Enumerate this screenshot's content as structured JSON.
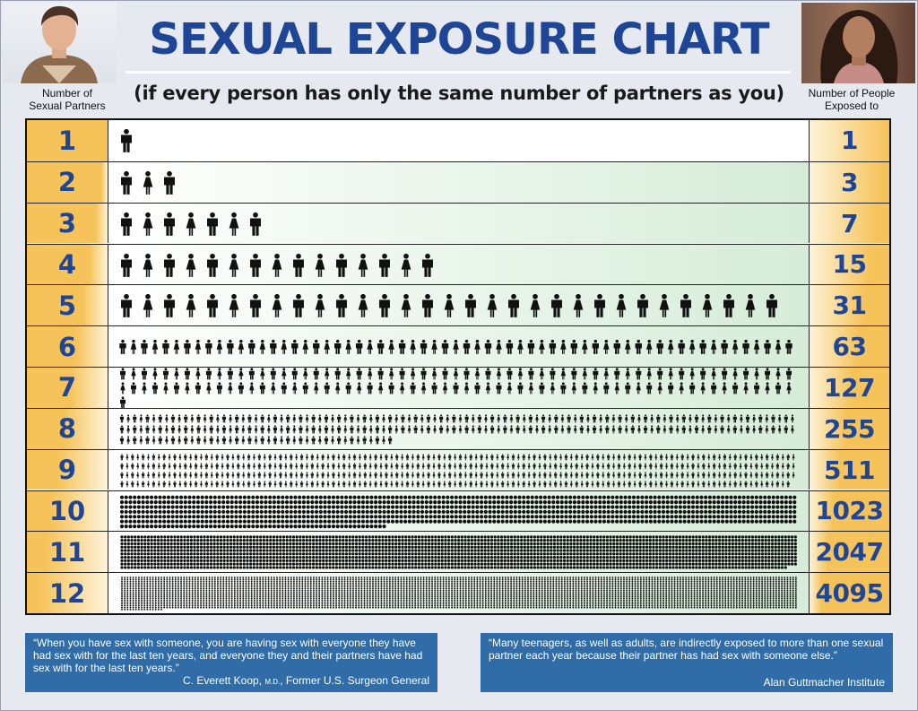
{
  "header": {
    "title": "SEXUAL EXPOSURE CHART",
    "subtitle": "(if every person has only the same number of partners as you)",
    "left_col_line1": "Number of",
    "left_col_line2": "Sexual Partners",
    "right_col_line1": "Number of People",
    "right_col_line2": "Exposed to"
  },
  "chart_data": {
    "type": "table",
    "columns": [
      "Number of Sexual Partners",
      "Number of People Exposed to"
    ],
    "categories": [
      "1",
      "2",
      "3",
      "4",
      "5",
      "6",
      "7",
      "8",
      "9",
      "10",
      "11",
      "12"
    ],
    "values": [
      1,
      3,
      7,
      15,
      31,
      63,
      127,
      255,
      511,
      1023,
      2047,
      4095
    ],
    "rows": [
      {
        "partners": "1",
        "exposed": "1"
      },
      {
        "partners": "2",
        "exposed": "3"
      },
      {
        "partners": "3",
        "exposed": "7"
      },
      {
        "partners": "4",
        "exposed": "15"
      },
      {
        "partners": "5",
        "exposed": "31"
      },
      {
        "partners": "6",
        "exposed": "63"
      },
      {
        "partners": "7",
        "exposed": "127"
      },
      {
        "partners": "8",
        "exposed": "255"
      },
      {
        "partners": "9",
        "exposed": "511"
      },
      {
        "partners": "10",
        "exposed": "1023"
      },
      {
        "partners": "11",
        "exposed": "2047"
      },
      {
        "partners": "12",
        "exposed": "4095"
      }
    ],
    "colors": {
      "label_blue": "#1f4597",
      "number_cell_gold": "#f6c35a",
      "number_cell_light": "#fdf3d8",
      "figure_area_green": "#d6ecd8",
      "figure_area_white": "#ffffff",
      "figure_color": "#111111"
    }
  },
  "quotes": {
    "left_text": "“When you have sex with someone, you are having sex with everyone they have had sex with for the last ten years, and everyone they and their partners have had sex with for the last ten years.”",
    "left_attr_name": "C. Everett Koop,",
    "left_attr_degree": "M.D.",
    "left_attr_rest": ", Former U.S. Surgeon General",
    "right_text": "“Many teenagers, as well as adults, are indirectly exposed to more than one sexual partner each year because their partner has had sex with someone else.”",
    "right_attr": "Alan Guttmacher Institute"
  },
  "photos": {
    "left": "young-man-photo",
    "right": "young-woman-photo"
  }
}
